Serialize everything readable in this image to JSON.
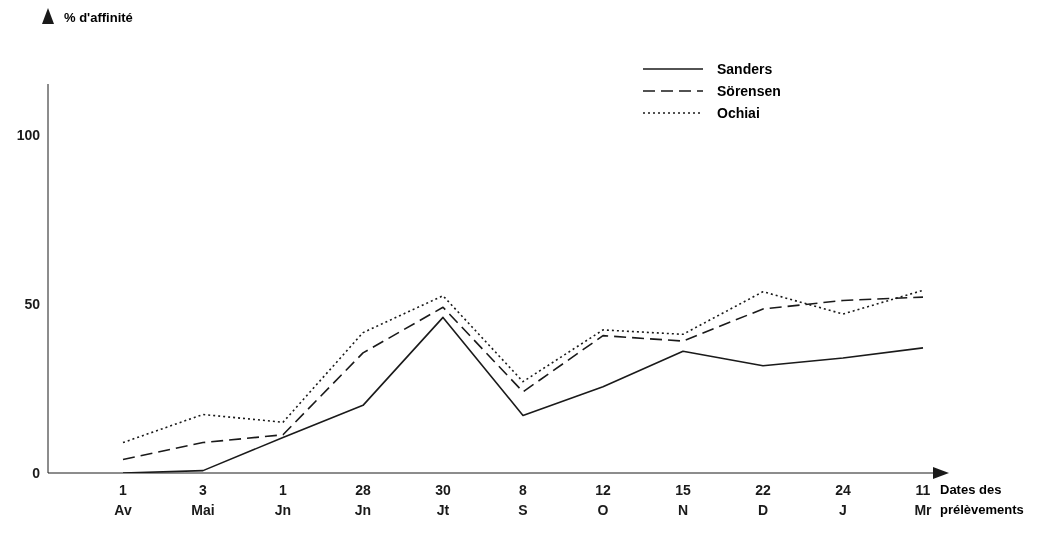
{
  "chart_data": {
    "type": "line",
    "ylabel": "% d'affinité",
    "xlabel": "Dates des prélèvements",
    "categories": [
      "1\nAv",
      "3\nMai",
      "1\nJn",
      "28\nJn",
      "30\nJt",
      "8\nS",
      "12\nO",
      "15\nN",
      "22\nD",
      "24\nJ",
      "11\nMr"
    ],
    "series": [
      {
        "name": "Sanders",
        "color": "#1a1a1a",
        "line_style": "solid",
        "values": [
          0,
          0.7,
          10.5,
          20,
          46,
          17,
          25.5,
          36,
          31.7,
          34,
          37
        ]
      },
      {
        "name": "Sörensen",
        "color": "#1a1a1a",
        "line_style": "dashed",
        "values": [
          4,
          9,
          11.3,
          35.5,
          49,
          24,
          40.6,
          39,
          48.5,
          51,
          52
        ]
      },
      {
        "name": "Ochiai",
        "color": "#1a1a1a",
        "line_style": "dotted",
        "values": [
          9,
          17.3,
          15,
          41.5,
          52.4,
          27,
          42.3,
          41,
          53.6,
          47,
          54
        ]
      }
    ],
    "ylim": [
      0,
      115
    ],
    "yticks": [
      0,
      50,
      100
    ],
    "legend": "top right",
    "marker": "none"
  }
}
